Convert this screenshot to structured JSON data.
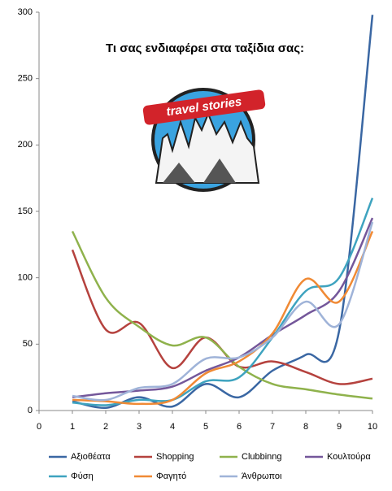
{
  "chart_data": {
    "type": "line",
    "title": "Τι σας ενδιαφέρει στα ταξίδια σας:",
    "logo_text": "travel stories",
    "x": [
      1,
      2,
      3,
      4,
      5,
      6,
      7,
      8,
      9,
      10
    ],
    "xlim": [
      0,
      10
    ],
    "xticks": [
      0,
      1,
      2,
      3,
      4,
      5,
      6,
      7,
      8,
      9,
      10
    ],
    "ylim": [
      0,
      300
    ],
    "yticks": [
      0,
      50,
      100,
      150,
      200,
      250,
      300
    ],
    "grid": false,
    "legend": "bottom",
    "smooth": true,
    "series": [
      {
        "name": "Αξιοθέατα",
        "color": "#3a67a3",
        "values": [
          7,
          2,
          10,
          3,
          20,
          10,
          30,
          42,
          60,
          298
        ]
      },
      {
        "name": "Shopping",
        "color": "#b5423e",
        "values": [
          121,
          61,
          66,
          32,
          55,
          33,
          37,
          29,
          20,
          24
        ]
      },
      {
        "name": "Clubbinng",
        "color": "#8fb24c",
        "values": [
          135,
          85,
          63,
          49,
          55,
          33,
          20,
          16,
          12,
          9
        ]
      },
      {
        "name": "Κουλτούρα",
        "color": "#74579a",
        "values": [
          10,
          13,
          15,
          18,
          30,
          40,
          57,
          72,
          90,
          145
        ]
      },
      {
        "name": "Φύση",
        "color": "#3ea3bf",
        "values": [
          6,
          4,
          8,
          8,
          22,
          25,
          55,
          90,
          100,
          160
        ]
      },
      {
        "name": "Φαγητό",
        "color": "#f08a35",
        "values": [
          8,
          7,
          5,
          8,
          28,
          37,
          58,
          99,
          82,
          135
        ]
      },
      {
        "name": "Άνθρωποι",
        "color": "#9fb3d8",
        "values": [
          11,
          8,
          17,
          20,
          39,
          40,
          55,
          82,
          65,
          142
        ]
      }
    ]
  }
}
